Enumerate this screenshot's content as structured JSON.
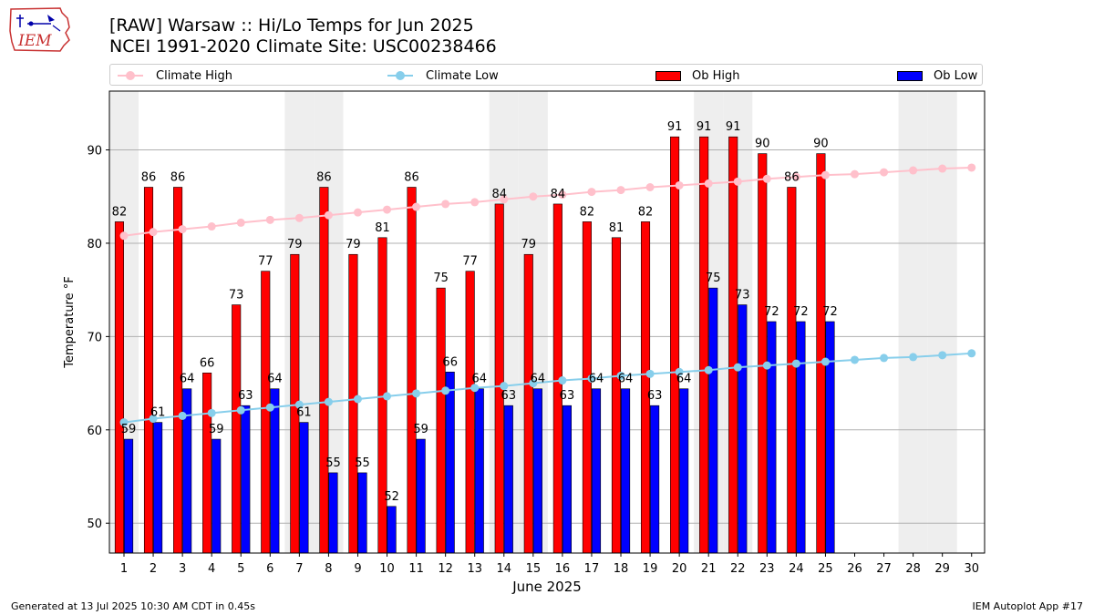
{
  "header": {
    "title_line1": "[RAW] Warsaw :: Hi/Lo Temps for Jun 2025",
    "title_line2": "NCEI 1991-2020 Climate Site: USC00238466",
    "logo_text": "IEM"
  },
  "footer": {
    "generated": "Generated at 13 Jul 2025 10:30 AM CDT in 0.45s",
    "app": "IEM Autoplot App #17"
  },
  "legend": {
    "climate_high": "Climate High",
    "climate_low": "Climate Low",
    "ob_high": "Ob High",
    "ob_low": "Ob Low"
  },
  "colors": {
    "ob_high": "#ff0000",
    "ob_low": "#0000ff",
    "climate_high": "#ffc0cb",
    "climate_low": "#87ceeb",
    "weekend_shade": "#eeeeee",
    "grid": "#b0b0b0"
  },
  "chart_data": {
    "type": "bar",
    "xlabel": "June 2025",
    "ylabel": "Temperature °F",
    "ylim": [
      46.8,
      96.3
    ],
    "yticks": [
      50,
      60,
      70,
      80,
      90
    ],
    "grid": "horizontal",
    "legend_position": "top",
    "days": [
      1,
      2,
      3,
      4,
      5,
      6,
      7,
      8,
      9,
      10,
      11,
      12,
      13,
      14,
      15,
      16,
      17,
      18,
      19,
      20,
      21,
      22,
      23,
      24,
      25,
      26,
      27,
      28,
      29,
      30
    ],
    "weekend_days": [
      1,
      7,
      8,
      14,
      15,
      21,
      22,
      28,
      29
    ],
    "series": [
      {
        "name": "Ob High",
        "kind": "bar",
        "values": [
          82,
          86,
          86,
          66,
          73,
          77,
          79,
          86,
          79,
          81,
          86,
          75,
          77,
          84,
          79,
          84,
          82,
          81,
          82,
          91,
          91,
          91,
          90,
          86,
          90
        ],
        "plotted": [
          82.3,
          86,
          86,
          66.1,
          73.4,
          77,
          78.8,
          86,
          78.8,
          80.6,
          86,
          75.2,
          77,
          84.2,
          78.8,
          84.2,
          82.3,
          80.6,
          82.3,
          91.4,
          91.4,
          91.4,
          89.6,
          86,
          89.6
        ]
      },
      {
        "name": "Ob Low",
        "kind": "bar",
        "values": [
          59,
          61,
          64,
          59,
          63,
          64,
          61,
          55,
          55,
          52,
          59,
          66,
          64,
          63,
          64,
          63,
          64,
          64,
          63,
          64,
          75,
          73,
          72,
          72,
          72
        ],
        "plotted": [
          59,
          60.8,
          64.4,
          59,
          62.6,
          64.4,
          60.8,
          55.4,
          55.4,
          51.8,
          59,
          66.2,
          64.4,
          62.6,
          64.4,
          62.6,
          64.4,
          64.4,
          62.6,
          64.4,
          75.2,
          73.4,
          71.6,
          71.6,
          71.6
        ]
      },
      {
        "name": "Climate High",
        "kind": "line",
        "values": [
          80.8,
          81.2,
          81.5,
          81.8,
          82.2,
          82.5,
          82.7,
          83.0,
          83.3,
          83.6,
          83.9,
          84.2,
          84.4,
          84.7,
          85.0,
          85.2,
          85.5,
          85.7,
          86.0,
          86.2,
          86.4,
          86.6,
          86.9,
          87.1,
          87.3,
          87.4,
          87.6,
          87.8,
          88.0,
          88.1
        ]
      },
      {
        "name": "Climate Low",
        "kind": "line",
        "values": [
          60.8,
          61.2,
          61.5,
          61.8,
          62.1,
          62.4,
          62.7,
          63.0,
          63.3,
          63.6,
          63.9,
          64.2,
          64.5,
          64.7,
          65.0,
          65.3,
          65.5,
          65.8,
          66.0,
          66.2,
          66.4,
          66.7,
          66.9,
          67.1,
          67.3,
          67.5,
          67.7,
          67.8,
          68.0,
          68.2
        ]
      }
    ]
  }
}
